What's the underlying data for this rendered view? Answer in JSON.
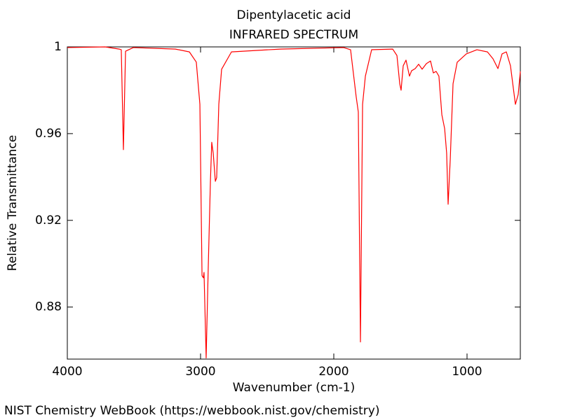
{
  "chart_data": {
    "type": "line",
    "title": "Dipentylacetic acid",
    "subtitle": "INFRARED SPECTRUM",
    "x_label": "Wavenumber (cm-1)",
    "y_label": "Relative Transmittance",
    "source": "NIST Chemistry WebBook (https://webbook.nist.gov/chemistry)",
    "xlim": [
      4000,
      600
    ],
    "ylim": [
      0.856,
      1.0
    ],
    "xticks": [
      4000,
      3000,
      2000,
      1000
    ],
    "yticks": [
      1,
      0.96,
      0.92,
      0.88
    ],
    "grid": false,
    "series": [
      {
        "color": "#ff0000",
        "x": [
          4000,
          3716,
          3611,
          3595,
          3579,
          3563,
          3505,
          3189,
          3084,
          3032,
          3005,
          2989,
          2979,
          2974,
          2958,
          2942,
          2926,
          2916,
          2905,
          2889,
          2879,
          2863,
          2842,
          2768,
          2400,
          1926,
          1874,
          1832,
          1816,
          1800,
          1784,
          1763,
          1716,
          1558,
          1526,
          1505,
          1495,
          1479,
          1458,
          1432,
          1416,
          1389,
          1363,
          1337,
          1305,
          1274,
          1253,
          1232,
          1211,
          1189,
          1168,
          1153,
          1142,
          1126,
          1105,
          1074,
          1005,
          926,
          847,
          805,
          768,
          737,
          705,
          674,
          637,
          616,
          600
        ],
        "values": [
          0.9997,
          1.0,
          0.999,
          0.9987,
          0.9526,
          0.998,
          0.9997,
          0.999,
          0.9977,
          0.993,
          0.9735,
          0.8945,
          0.8935,
          0.896,
          0.8565,
          0.899,
          0.938,
          0.956,
          0.951,
          0.938,
          0.9397,
          0.9735,
          0.9897,
          0.9977,
          0.999,
          0.9997,
          0.9987,
          0.977,
          0.97,
          0.8639,
          0.9735,
          0.9865,
          0.9987,
          0.999,
          0.996,
          0.983,
          0.98,
          0.9913,
          0.9939,
          0.9865,
          0.989,
          0.99,
          0.992,
          0.9897,
          0.9923,
          0.9935,
          0.988,
          0.9887,
          0.9865,
          0.9687,
          0.9623,
          0.951,
          0.9274,
          0.948,
          0.983,
          0.9929,
          0.9968,
          0.9987,
          0.9977,
          0.9945,
          0.99,
          0.9968,
          0.9977,
          0.9913,
          0.9735,
          0.978,
          0.9887
        ]
      }
    ]
  }
}
